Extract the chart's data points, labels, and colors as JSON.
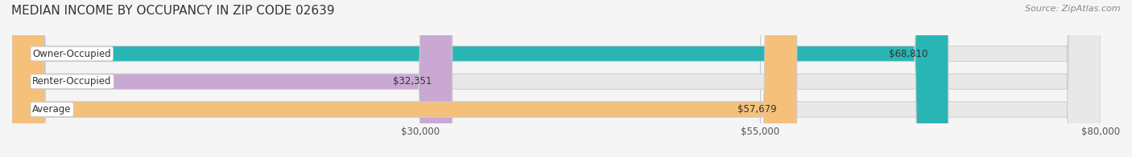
{
  "title": "MEDIAN INCOME BY OCCUPANCY IN ZIP CODE 02639",
  "source": "Source: ZipAtlas.com",
  "categories": [
    "Owner-Occupied",
    "Renter-Occupied",
    "Average"
  ],
  "values": [
    68810,
    32351,
    57679
  ],
  "labels": [
    "$68,810",
    "$32,351",
    "$57,679"
  ],
  "bar_colors": [
    "#2ab5b5",
    "#c9a8d4",
    "#f5c07a"
  ],
  "bar_edge_color": "#cccccc",
  "background_color": "#f0f0f0",
  "bar_bg_color": "#e8e8e8",
  "xmin": 0,
  "xmax": 80000,
  "xticks": [
    30000,
    55000,
    80000
  ],
  "xtick_labels": [
    "$30,000",
    "$55,000",
    "$80,000"
  ],
  "title_fontsize": 11,
  "label_fontsize": 8.5,
  "tick_fontsize": 8.5,
  "source_fontsize": 8
}
